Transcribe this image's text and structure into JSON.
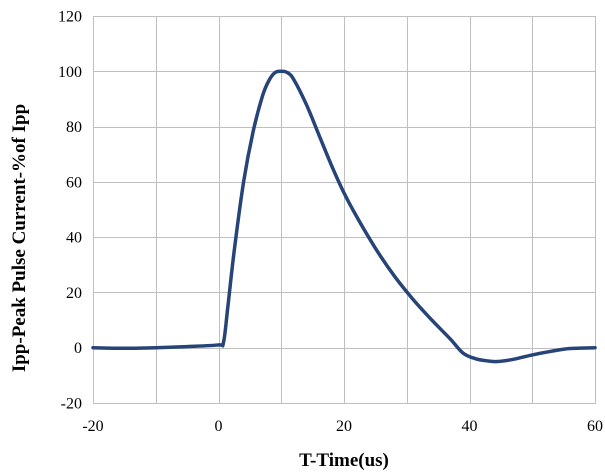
{
  "chart_data": {
    "type": "line",
    "title": "",
    "xlabel": "T-Time(us)",
    "ylabel": "Ipp-Peak Pulse Current-%of Ipp",
    "xlim": [
      -20,
      60
    ],
    "ylim": [
      -20,
      120
    ],
    "xticks": [
      -20,
      0,
      20,
      40,
      60
    ],
    "yticks": [
      -20,
      0,
      20,
      40,
      60,
      80,
      100,
      120
    ],
    "xticks_labels": [
      "-20",
      "0",
      "20",
      "40",
      "60"
    ],
    "yticks_labels": [
      "-20",
      "0",
      "20",
      "40",
      "60",
      "80",
      "100",
      "120"
    ],
    "x_gridlines": [
      -20,
      -10,
      0,
      10,
      20,
      30,
      40,
      50,
      60
    ],
    "y_gridlines": [
      -20,
      0,
      20,
      40,
      60,
      80,
      100,
      120
    ],
    "grid": true,
    "line_color": "#264478",
    "series": [
      {
        "x": [
          -20,
          -15,
          -10,
          -5,
          0,
          0.8,
          1.5,
          2.5,
          4,
          5.5,
          7,
          8,
          9,
          10,
          11,
          12,
          14,
          16,
          18,
          20,
          22,
          25,
          28,
          31,
          34,
          37,
          39,
          41,
          43,
          44.5,
          47,
          50,
          53,
          56,
          60
        ],
        "y": [
          0,
          -0.2,
          0,
          0.4,
          1,
          2,
          15,
          35,
          60,
          78,
          91,
          96.5,
          99.5,
          100,
          99.5,
          97,
          88,
          77,
          66,
          56,
          47.5,
          36,
          26,
          17.5,
          10,
          3,
          -2,
          -4,
          -4.8,
          -5,
          -4.2,
          -2.6,
          -1.3,
          -0.3,
          0
        ]
      }
    ]
  }
}
